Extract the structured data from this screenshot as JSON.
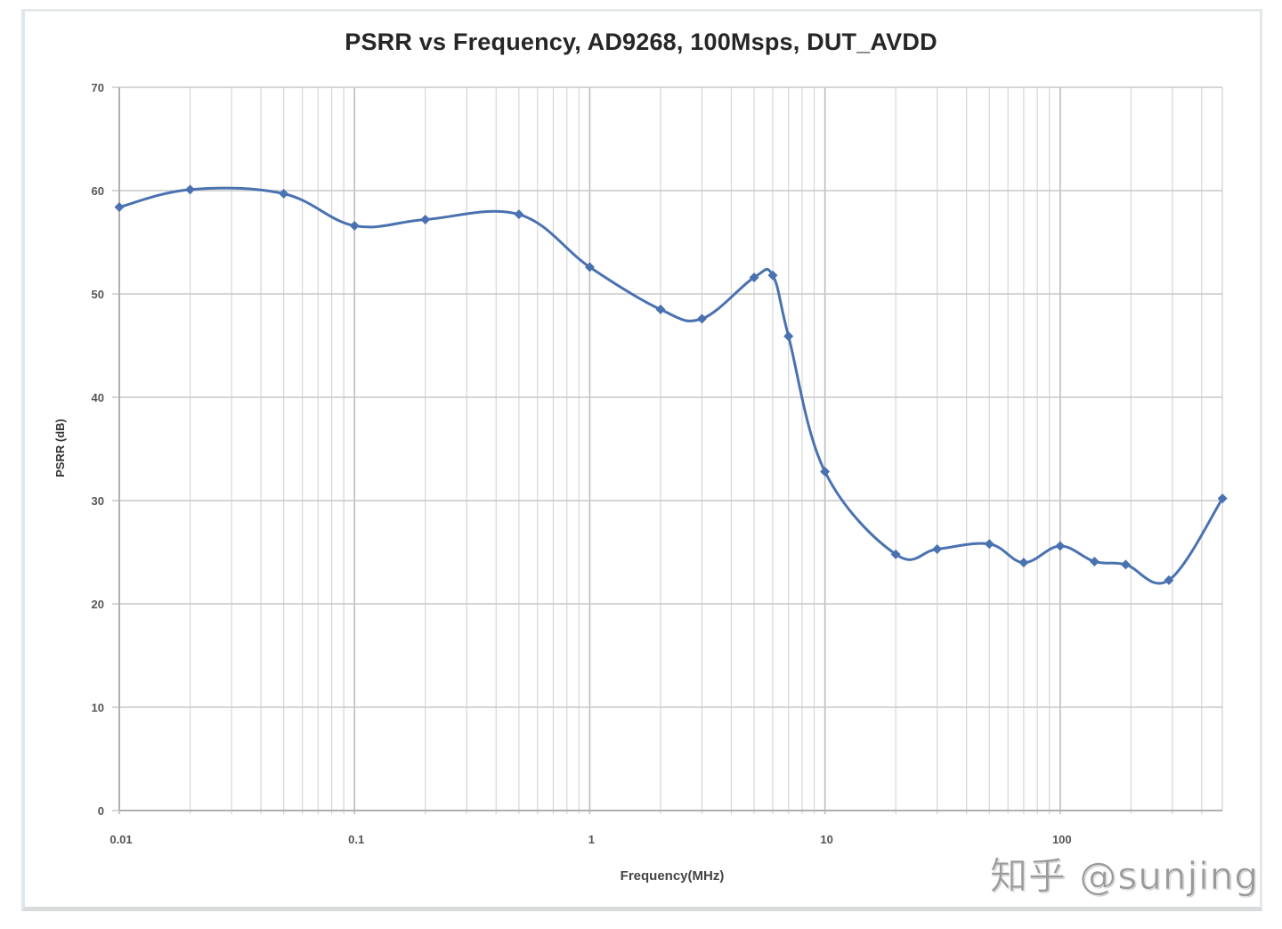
{
  "chart_data": {
    "type": "line",
    "title": "PSRR vs Frequency, AD9268, 100Msps, DUT_AVDD",
    "xlabel": "Frequency(MHz)",
    "ylabel": "PSRR (dB)",
    "xscale": "log",
    "xlim": [
      0.01,
      500
    ],
    "ylim": [
      0,
      70
    ],
    "x_ticks": [
      "0.01",
      "0.1",
      "1",
      "10",
      "100"
    ],
    "y_ticks": [
      "0",
      "10",
      "20",
      "30",
      "40",
      "50",
      "60",
      "70"
    ],
    "grid": true,
    "legend": null,
    "series": [
      {
        "name": "PSRR",
        "color": "#4a72b0",
        "x": [
          0.01,
          0.02,
          0.05,
          0.1,
          0.2,
          0.5,
          1,
          2,
          3,
          5,
          6,
          7,
          10,
          20,
          30,
          50,
          70,
          100,
          140,
          190,
          290,
          490
        ],
        "values": [
          58.4,
          60.1,
          59.7,
          56.6,
          57.2,
          57.7,
          52.6,
          48.5,
          47.6,
          51.6,
          51.8,
          45.9,
          32.8,
          24.8,
          25.3,
          25.8,
          24.0,
          25.6,
          24.1,
          23.8,
          22.3,
          30.2
        ]
      }
    ]
  },
  "watermark": "知乎 @sunjing"
}
